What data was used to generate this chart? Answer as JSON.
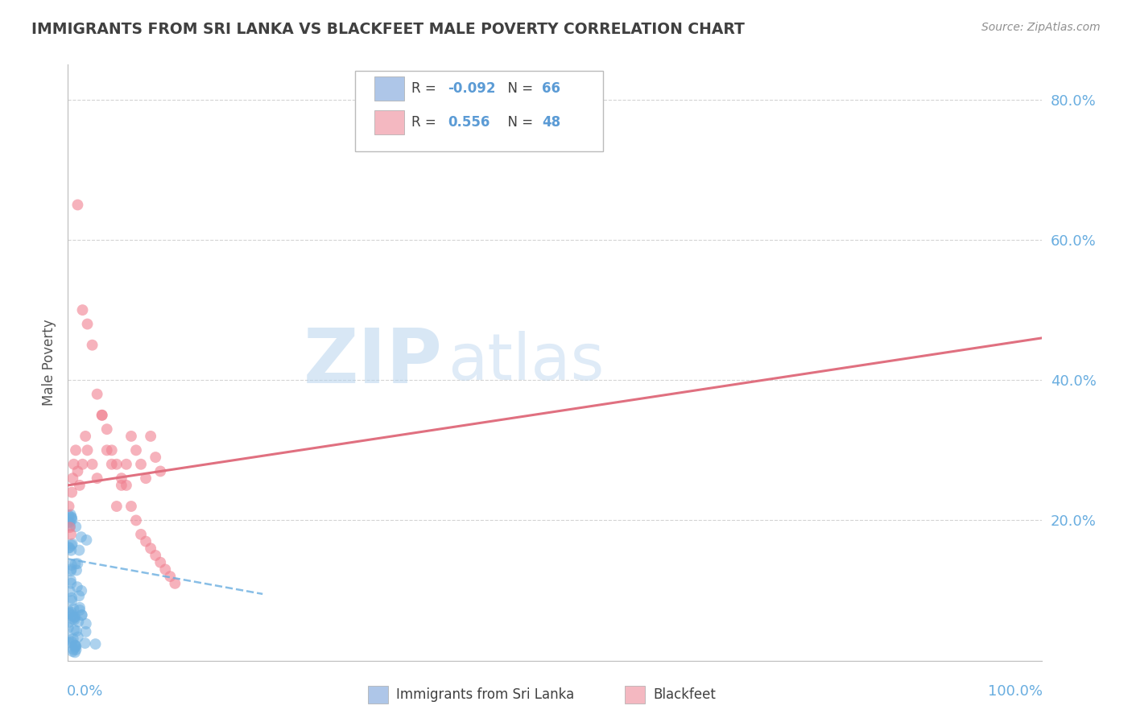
{
  "title": "IMMIGRANTS FROM SRI LANKA VS BLACKFEET MALE POVERTY CORRELATION CHART",
  "source": "Source: ZipAtlas.com",
  "ylabel": "Male Poverty",
  "legend_entry1": {
    "label": "Immigrants from Sri Lanka",
    "R": -0.092,
    "N": 66,
    "color": "#aec6e8"
  },
  "legend_entry2": {
    "label": "Blackfeet",
    "R": 0.556,
    "N": 48,
    "color": "#f4b8c1"
  },
  "xlim": [
    0.0,
    1.0
  ],
  "ylim": [
    0.0,
    0.85
  ],
  "background_color": "#ffffff",
  "grid_color": "#d0d0d0",
  "blue_dot_color": "#6aaee0",
  "pink_dot_color": "#f08090",
  "blue_line_color": "#6aaee0",
  "pink_line_color": "#e07080",
  "title_color": "#404040",
  "source_color": "#909090",
  "axis_label_color": "#6aaee0"
}
